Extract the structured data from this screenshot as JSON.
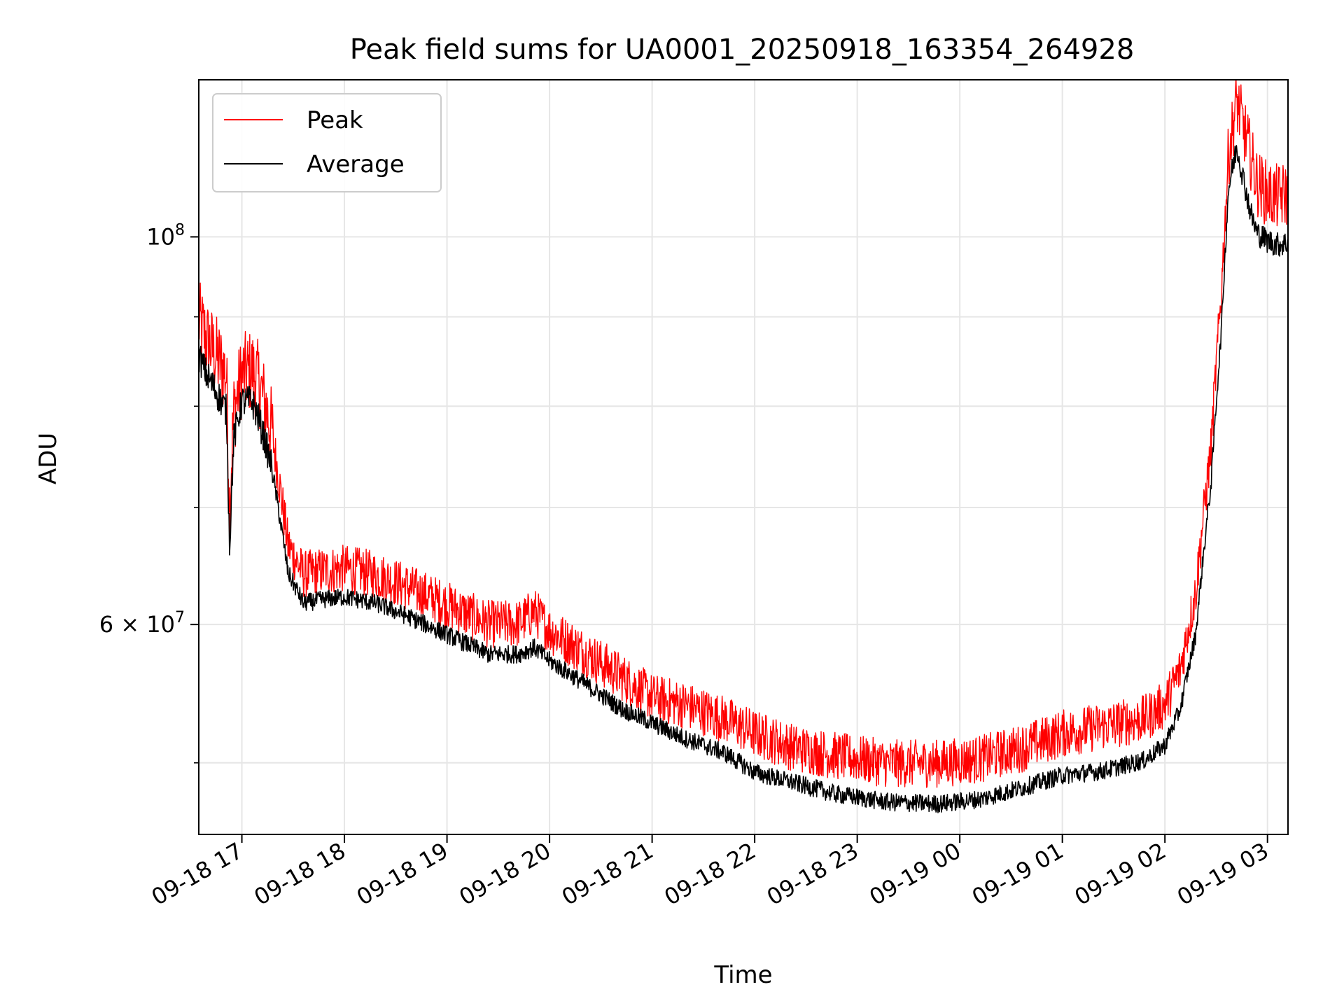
{
  "chart_data": {
    "type": "line",
    "title": "Peak field sums for UA0001_20250918_163354_264928",
    "xlabel": "Time",
    "ylabel": "ADU",
    "yscale": "log",
    "ylim": [
      45500000,
      123000000
    ],
    "xlim_hours": [
      16.58,
      27.2
    ],
    "grid": true,
    "legend_position": "upper-left",
    "x_ticks": [
      {
        "hour": 17,
        "label": "09-18 17"
      },
      {
        "hour": 18,
        "label": "09-18 18"
      },
      {
        "hour": 19,
        "label": "09-18 19"
      },
      {
        "hour": 20,
        "label": "09-18 20"
      },
      {
        "hour": 21,
        "label": "09-18 21"
      },
      {
        "hour": 22,
        "label": "09-18 22"
      },
      {
        "hour": 23,
        "label": "09-18 23"
      },
      {
        "hour": 24,
        "label": "09-19 00"
      },
      {
        "hour": 25,
        "label": "09-19 01"
      },
      {
        "hour": 26,
        "label": "09-19 02"
      },
      {
        "hour": 27,
        "label": "09-19 03"
      }
    ],
    "y_major_ticks": [
      {
        "value": 60000000,
        "base": "6 × 10",
        "exp": "7"
      },
      {
        "value": 100000000,
        "base": "10",
        "exp": "8"
      }
    ],
    "y_minor_ticks": [
      50000000,
      70000000,
      80000000,
      90000000
    ],
    "series": [
      {
        "name": "Peak",
        "color": "#ff0000",
        "x": [
          16.58,
          16.65,
          16.75,
          16.85,
          16.88,
          16.92,
          17.0,
          17.1,
          17.17,
          17.3,
          17.45,
          17.6,
          17.8,
          18.0,
          18.3,
          18.6,
          19.0,
          19.4,
          19.7,
          19.85,
          20.0,
          20.3,
          20.7,
          21.0,
          21.3,
          21.7,
          22.0,
          22.4,
          22.8,
          23.3,
          23.8,
          24.2,
          24.6,
          25.0,
          25.4,
          25.8,
          26.0,
          26.15,
          26.3,
          26.45,
          26.55,
          26.62,
          26.7,
          26.8,
          26.85,
          26.9,
          27.0,
          27.1,
          27.2
        ],
        "y": [
          88000000,
          86000000,
          84000000,
          82000000,
          69000000,
          78000000,
          82000000,
          82500000,
          81000000,
          76000000,
          66000000,
          63500000,
          63800000,
          64000000,
          63500000,
          62500000,
          61000000,
          59500000,
          59500000,
          60500000,
          59000000,
          57500000,
          55500000,
          54000000,
          53500000,
          52500000,
          51500000,
          50500000,
          50000000,
          49500000,
          49500000,
          49800000,
          50500000,
          51500000,
          52000000,
          52500000,
          53500000,
          56000000,
          62000000,
          75000000,
          92000000,
          110000000,
          118000000,
          112000000,
          109000000,
          106000000,
          104500000,
          104000000,
          104500000
        ]
      },
      {
        "name": "Average",
        "color": "#000000",
        "x": [
          16.58,
          16.65,
          16.75,
          16.85,
          16.88,
          16.92,
          17.0,
          17.1,
          17.17,
          17.3,
          17.45,
          17.6,
          17.8,
          18.0,
          18.3,
          18.6,
          19.0,
          19.4,
          19.7,
          19.85,
          20.0,
          20.3,
          20.7,
          21.0,
          21.3,
          21.7,
          22.0,
          22.4,
          22.8,
          23.3,
          23.8,
          24.2,
          24.6,
          25.0,
          25.4,
          25.8,
          26.0,
          26.15,
          26.3,
          26.45,
          26.55,
          26.62,
          26.7,
          26.8,
          26.85,
          26.9,
          27.0,
          27.1,
          27.2
        ],
        "y": [
          85000000,
          83000000,
          81000000,
          79000000,
          66000000,
          76000000,
          80000000,
          80000000,
          78000000,
          73000000,
          64000000,
          61500000,
          61800000,
          62000000,
          61500000,
          60500000,
          59000000,
          57500000,
          57500000,
          58000000,
          57000000,
          55500000,
          53500000,
          52500000,
          51500000,
          50500000,
          49200000,
          48500000,
          47800000,
          47300000,
          47200000,
          47500000,
          48200000,
          49000000,
          49300000,
          50000000,
          51000000,
          53500000,
          59000000,
          72000000,
          88000000,
          106000000,
          112000000,
          105000000,
          102000000,
          100000000,
          99000000,
          98500000,
          98700000
        ]
      }
    ]
  }
}
